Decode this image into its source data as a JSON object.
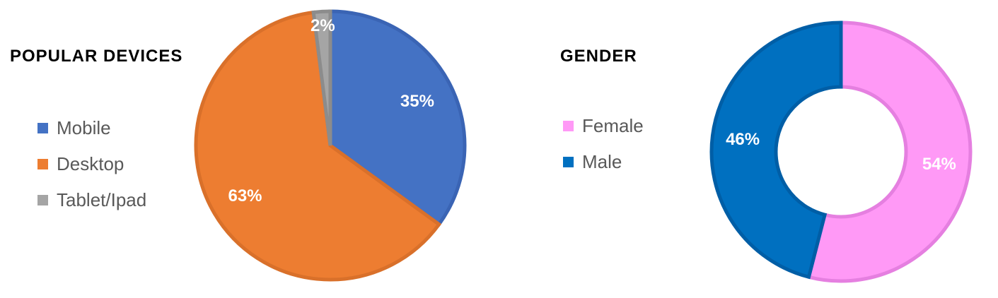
{
  "chart_data": [
    {
      "type": "pie",
      "title": "POPULAR DEVICES",
      "categories": [
        "Mobile",
        "Desktop",
        "Tablet/Ipad"
      ],
      "values": [
        35,
        63,
        2
      ],
      "data_labels": [
        "35%",
        "63%",
        "2%"
      ],
      "colors": [
        "#4472C4",
        "#ED7D31",
        "#A5A5A5"
      ],
      "edge_colors": [
        "#3A64B4",
        "#D9702A",
        "#8C8C8C"
      ],
      "legend_position": "left"
    },
    {
      "type": "pie",
      "variant": "donut",
      "title": "GENDER",
      "categories": [
        "Female",
        "Male"
      ],
      "values": [
        54,
        46
      ],
      "data_labels": [
        "54%",
        "46%"
      ],
      "colors": [
        "#FF99F6",
        "#0070C0"
      ],
      "edge_colors": [
        "#E57FE0",
        "#005EA6"
      ],
      "legend_position": "left"
    }
  ]
}
